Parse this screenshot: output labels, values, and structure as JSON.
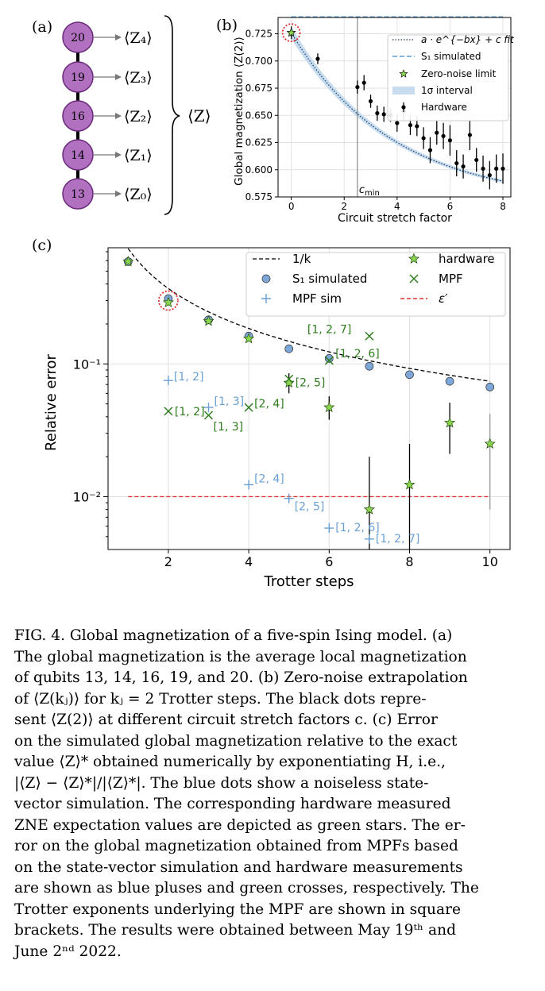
{
  "panel_a": {
    "label": "(a)",
    "qubits": [
      "20",
      "19",
      "16",
      "14",
      "13"
    ],
    "operators": [
      "⟨Z₄⟩",
      "⟨Z₃⟩",
      "⟨Z₂⟩",
      "⟨Z₁⟩",
      "⟨Z₀⟩"
    ],
    "total": "⟨Z⟩",
    "colors": {
      "node_fill": "#b270c0",
      "node_stroke": "#6a2a7a"
    }
  },
  "chart_data": [
    {
      "type": "scatter",
      "panel_label": "(b)",
      "xlabel": "Circuit stretch factor",
      "ylabel": "Global magnetization ⟨Z(2)⟩",
      "xlim": [
        -0.5,
        8.3
      ],
      "ylim": [
        0.575,
        0.74
      ],
      "xticks": [
        "0",
        "2",
        "4",
        "6",
        "8"
      ],
      "yticks": [
        "0.575",
        "0.600",
        "0.625",
        "0.650",
        "0.675",
        "0.700",
        "0.725"
      ],
      "grid": true,
      "vline_label": "c",
      "vline_label_sub": "min",
      "vline_x": 2.5,
      "legend": [
        "a · e^{−bx} + c fit",
        "S₁ simulated",
        "Zero-noise limit",
        "1σ interval",
        "Hardware"
      ],
      "legend_placement": "upper-right",
      "s1_simulated": 0.7405,
      "fit": {
        "a": 0.156,
        "b": 0.26,
        "c": 0.57
      },
      "zero_noise_limit": {
        "x": 0,
        "y": 0.726
      },
      "hardware": {
        "x": [
          1,
          2.5,
          2.75,
          3,
          3.25,
          3.5,
          3.75,
          4,
          4.25,
          4.5,
          4.75,
          5,
          5.25,
          5.5,
          5.75,
          6,
          6.25,
          6.5,
          6.75,
          7,
          7.25,
          7.5,
          7.75,
          8
        ],
        "y": [
          0.702,
          0.676,
          0.68,
          0.663,
          0.652,
          0.651,
          0.65,
          0.643,
          0.654,
          0.641,
          0.64,
          0.629,
          0.618,
          0.634,
          0.631,
          0.627,
          0.606,
          0.603,
          0.632,
          0.609,
          0.601,
          0.595,
          0.601,
          0.601
        ],
        "err": [
          0.005,
          0.006,
          0.007,
          0.006,
          0.007,
          0.007,
          0.006,
          0.008,
          0.009,
          0.009,
          0.009,
          0.01,
          0.012,
          0.011,
          0.012,
          0.014,
          0.012,
          0.011,
          0.014,
          0.011,
          0.012,
          0.013,
          0.013,
          0.014
        ]
      },
      "colors": {
        "fit": "#1f3a60",
        "s1": "#5b9bd5",
        "star": "#8bd450",
        "band": "#c7dcef",
        "hardware": "#000000",
        "circle": "#e03030"
      }
    },
    {
      "type": "scatter",
      "panel_label": "(c)",
      "xlabel": "Trotter steps",
      "ylabel": "Relative error",
      "xlim": [
        0.5,
        10.5
      ],
      "y_scale": "log",
      "ylim": [
        0.004,
        0.75
      ],
      "xticks": [
        "2",
        "4",
        "6",
        "8",
        "10"
      ],
      "yticks_major": [
        "10⁻²",
        "10⁻¹"
      ],
      "grid": true,
      "legend": [
        "1/k",
        "S₁ simulated",
        "MPF sim",
        "hardware",
        "MPF",
        "ε′"
      ],
      "legend_placement": "upper-right",
      "one_over_k": {
        "x_from": 1,
        "x_to": 10,
        "scale": 0.74
      },
      "s1_simulated": {
        "x": [
          1,
          2,
          3,
          4,
          5,
          6,
          7,
          8,
          9,
          10
        ],
        "y": [
          0.59,
          0.31,
          0.215,
          0.162,
          0.13,
          0.11,
          0.096,
          0.083,
          0.074,
          0.067
        ]
      },
      "hardware": {
        "x": [
          1,
          2,
          3,
          4,
          5,
          6,
          7,
          8,
          9,
          10
        ],
        "y": [
          0.59,
          0.29,
          0.21,
          0.155,
          0.072,
          0.047,
          0.008,
          0.0123,
          0.036,
          0.025
        ],
        "err_lo": [
          0.58,
          0.285,
          0.205,
          0.15,
          0.06,
          0.038,
          0.004,
          0.004,
          0.021,
          0.008
        ],
        "err_hi": [
          0.6,
          0.295,
          0.215,
          0.16,
          0.085,
          0.057,
          0.02,
          0.025,
          0.051,
          0.042
        ]
      },
      "mpf": [
        {
          "x": 2,
          "y": 0.044,
          "label": "[1, 2]"
        },
        {
          "x": 3,
          "y": 0.041,
          "label": "[1, 3]"
        },
        {
          "x": 4,
          "y": 0.047,
          "label": "[2, 4]"
        },
        {
          "x": 5,
          "y": 0.077,
          "label": "[2, 5]"
        },
        {
          "x": 6,
          "y": 0.106,
          "label": "[1, 2, 6]"
        },
        {
          "x": 7,
          "y": 0.162,
          "label": "[1, 2, 7]"
        }
      ],
      "mpf_sim": [
        {
          "x": 2,
          "y": 0.075,
          "label": "[1, 2]"
        },
        {
          "x": 3,
          "y": 0.047,
          "label": "[1, 3]"
        },
        {
          "x": 4,
          "y": 0.0123,
          "label": "[2, 4]"
        },
        {
          "x": 5,
          "y": 0.0097,
          "label": "[2, 5]"
        },
        {
          "x": 6,
          "y": 0.0058,
          "label": "[1, 2, 6]"
        },
        {
          "x": 7,
          "y": 0.0048,
          "label": "[1, 2, 7]"
        }
      ],
      "epsilon_prime": 0.01,
      "colors": {
        "s1": "#7da7d9",
        "mpf_sim": "#6a9fd4",
        "mpf": "#2e7d1e",
        "star": "#8bd450",
        "eps": "#e03030",
        "curve": "#000000"
      }
    }
  ],
  "caption": {
    "lines": [
      "FIG. 4.  Global magnetization of a five-spin Ising model. (a)",
      "The global magnetization is the average local magnetization",
      "of qubits 13, 14, 16, 19, and 20. (b) Zero-noise extrapolation",
      "of ⟨Z(kⱼ)⟩ for kⱼ = 2 Trotter steps. The black dots repre-",
      "sent ⟨Z(2)⟩ at different circuit stretch factors c.  (c) Error",
      "on the simulated global magnetization relative to the exact",
      "value ⟨Z⟩* obtained numerically by exponentiating H, i.e.,",
      "|⟨Z⟩ − ⟨Z⟩*|/|⟨Z⟩*|.  The blue dots show a noiseless state-",
      "vector simulation.  The corresponding hardware measured",
      "ZNE expectation values are depicted as green stars. The er-",
      "ror on the global magnetization obtained from MPFs based",
      "on the state-vector simulation and hardware measurements",
      "are shown as blue pluses and green crosses, respectively. The",
      "Trotter exponents underlying the MPF are shown in square",
      "brackets.  The results were obtained between May 19ᵗʰ and",
      "June 2ⁿᵈ 2022."
    ]
  }
}
